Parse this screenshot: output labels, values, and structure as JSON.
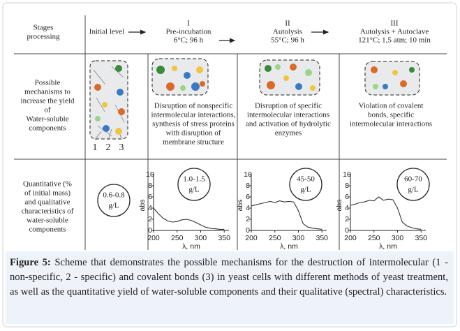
{
  "figure": {
    "header": {
      "stages": [
        "Stages",
        "processing"
      ],
      "initial": "Initial level",
      "stage1": [
        "I",
        "Pre-incubation",
        "6°C; 96 h"
      ],
      "stage2": [
        "II",
        "Autolysis",
        "55°C; 96 h"
      ],
      "stage3": [
        "III",
        "Autolysis + Autoclave",
        "121°C; 1,5 atm; 10 min"
      ]
    },
    "mechanisms": {
      "label": [
        "Possible",
        "mechanisms to",
        "increase the yield",
        "of",
        "Water-soluble",
        "components"
      ],
      "bond_labels": [
        "1",
        "2",
        "3"
      ],
      "stage1": [
        "Disruption of nonspecific",
        "intermolecular interactions,",
        "synthesis of stress proteins",
        "with disruption of",
        "membrane structure"
      ],
      "stage2": [
        "Disruption of specific",
        "intermolecular interactions",
        "and activation of hydrolytic",
        "enzymes"
      ],
      "stage3": [
        "Violation of covalent",
        "bonds, specific",
        "intermolecular interactions"
      ]
    },
    "yield": {
      "label": [
        "Quantitative (%",
        "of initial mass)",
        "and qualitative",
        "characteristics of",
        "water-soluble",
        "components"
      ],
      "initial": {
        "value": "0.6-0.8",
        "unit": "g/L"
      },
      "charts": [
        {
          "type": "line",
          "value": "1.0-1.5",
          "unit": "g/L",
          "ylabel": "abs",
          "xlabel": "λ, nm",
          "xlim": [
            200,
            360
          ],
          "ylim": [
            0,
            10
          ],
          "xticks": [
            200,
            250,
            300,
            350
          ],
          "yticks": [
            0,
            2,
            4,
            6,
            8,
            10
          ],
          "x": [
            200,
            210,
            220,
            230,
            240,
            250,
            260,
            270,
            280,
            290,
            300,
            310,
            320,
            330,
            340,
            350
          ],
          "y": [
            4.0,
            3.0,
            2.2,
            1.7,
            1.5,
            1.6,
            1.9,
            2.0,
            1.8,
            1.4,
            1.0,
            0.6,
            0.4,
            0.3,
            0.2,
            0.2
          ]
        },
        {
          "type": "line",
          "value": "45-50",
          "unit": "g/L",
          "ylabel": "abs",
          "xlabel": "λ, nm",
          "xlim": [
            200,
            360
          ],
          "ylim": [
            0,
            10
          ],
          "xticks": [
            200,
            250,
            300,
            350
          ],
          "yticks": [
            0,
            2,
            4,
            6,
            8,
            10
          ],
          "x": [
            200,
            210,
            220,
            230,
            240,
            250,
            260,
            270,
            280,
            290,
            300,
            310,
            320,
            330,
            340,
            350
          ],
          "y": [
            4.4,
            4.6,
            4.8,
            5.0,
            5.2,
            5.0,
            5.3,
            5.1,
            5.2,
            5.1,
            3.5,
            1.2,
            0.6,
            0.4,
            0.3,
            0.2
          ]
        },
        {
          "type": "line",
          "value": "60-70",
          "unit": "g/L",
          "ylabel": "abs",
          "xlabel": "λ, nm",
          "xlim": [
            200,
            360
          ],
          "ylim": [
            0,
            10
          ],
          "xticks": [
            200,
            250,
            300,
            350
          ],
          "yticks": [
            0,
            2,
            4,
            6,
            8,
            10
          ],
          "x": [
            200,
            210,
            220,
            230,
            240,
            250,
            260,
            270,
            280,
            290,
            300,
            310,
            320,
            330,
            340,
            350
          ],
          "y": [
            4.5,
            4.7,
            5.0,
            5.1,
            5.4,
            5.3,
            6.0,
            5.4,
            5.6,
            5.5,
            4.0,
            1.5,
            0.8,
            0.5,
            0.3,
            0.2
          ]
        }
      ]
    },
    "caption": {
      "label": "Figure 5:",
      "text": "Scheme that demonstrates the possible mechanisms for the destruction of intermolecular (1 - non-specific, 2 - specific) and covalent bonds (3) in yeast cells with different methods of yeast treatment, as well as the quantitative yield of water-soluble components and their qualitative (spectral) characteristics."
    }
  }
}
